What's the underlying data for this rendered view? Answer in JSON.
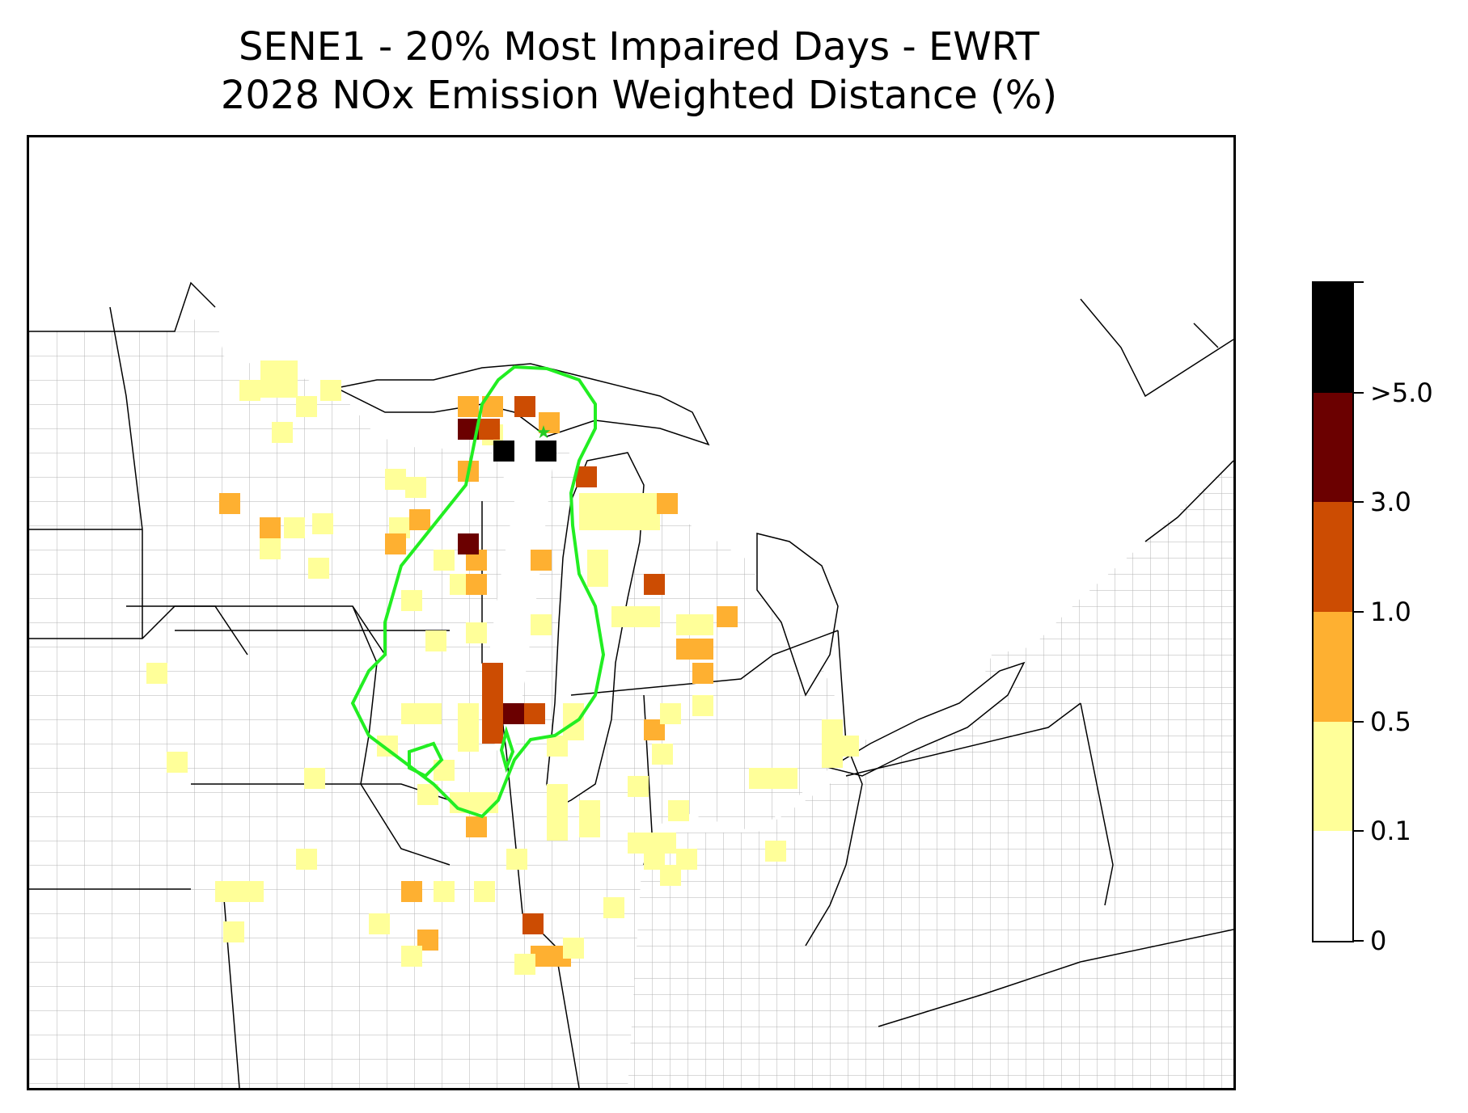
{
  "title": {
    "line1": "SENE1 - 20% Most Impaired Days - EWRT",
    "line2": "2028 NOx Emission Weighted Distance (%)"
  },
  "colorbar": {
    "bins": [
      {
        "label": "0",
        "color": "#ffffff"
      },
      {
        "label": "0.1",
        "color": "#ffff99"
      },
      {
        "label": "0.5",
        "color": "#feb031"
      },
      {
        "label": "1.0",
        "color": "#cc4c02"
      },
      {
        "label": "3.0",
        "color": "#6b0000"
      },
      {
        "label": ">5.0",
        "color": "#000000"
      }
    ]
  },
  "colors": {
    "contour": "#22ee22",
    "state_border": "#000000",
    "county_border": "#aaaaaa",
    "receptor": "#22cc22"
  },
  "icons": {
    "receptor": "star-icon"
  }
}
